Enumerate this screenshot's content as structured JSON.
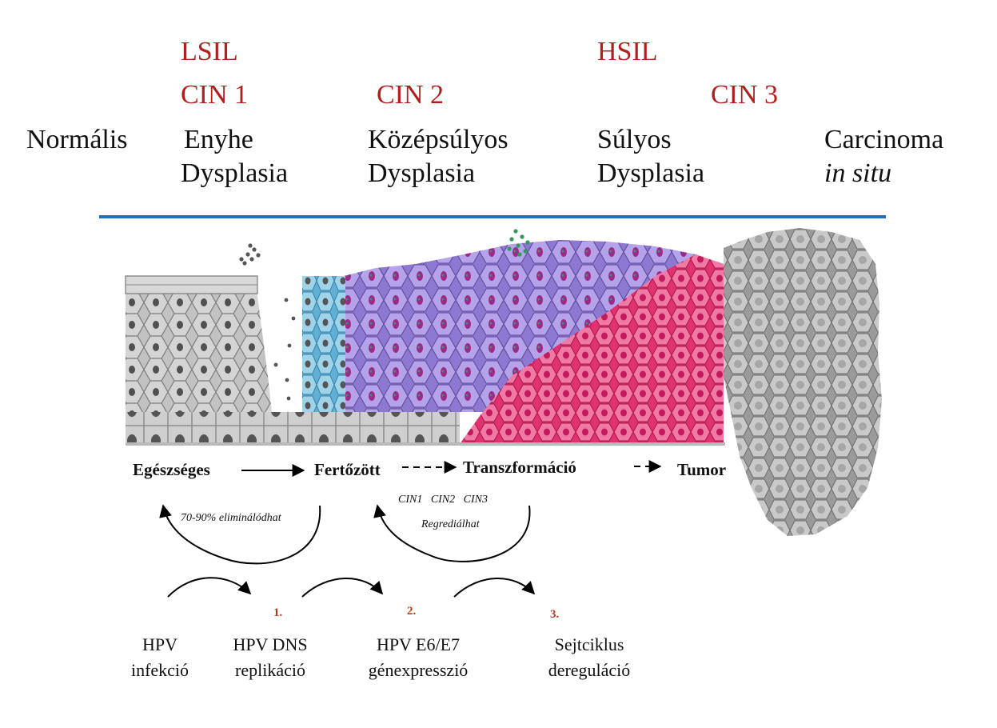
{
  "grades": {
    "lsil": "LSIL",
    "hsil": "HSIL",
    "cin1": "CIN 1",
    "cin2": "CIN 2",
    "cin3": "CIN 3"
  },
  "stages": {
    "normal": "Normális",
    "mild_1": "Enyhe",
    "mild_2": "Dysplasia",
    "moderate_1": "Középsúlyos",
    "moderate_2": "Dysplasia",
    "severe_1": "Súlyos",
    "severe_2": "Dysplasia",
    "cis_1": "Carcinoma",
    "cis_2": "in situ"
  },
  "flow": {
    "healthy": "Egészséges",
    "infected": "Fertőzött",
    "transformation": "Transzformáció",
    "tumor": "Tumor"
  },
  "notes": {
    "elimination": "70-90% eliminálódhat",
    "cin_list": "CIN1   CIN2   CIN3",
    "regress": "Regrediálhat"
  },
  "steps": {
    "s1": "1.",
    "s2": "2.",
    "s3": "3."
  },
  "bottom": {
    "hpv_1": "HPV",
    "hpv_2": "infekció",
    "dns_1": "HPV DNS",
    "dns_2": "replikáció",
    "e6e7_1": "HPV E6/E7",
    "e6e7_2": "génexpresszió",
    "cycle_1": "Sejtciklus",
    "cycle_2": "dereguláció"
  },
  "colors": {
    "grade_red": "#b51c1c",
    "divider_blue": "#1f6fc5",
    "healthy_gray": "#9a9a9a",
    "infected_blue": "#6bb6d6",
    "purple": "#8a6cc8",
    "pink": "#e03a78",
    "tumor_gray": "#8e8e8e",
    "nucleus_purple": "#9c2a8a",
    "virus_green": "#2f9a5a"
  }
}
